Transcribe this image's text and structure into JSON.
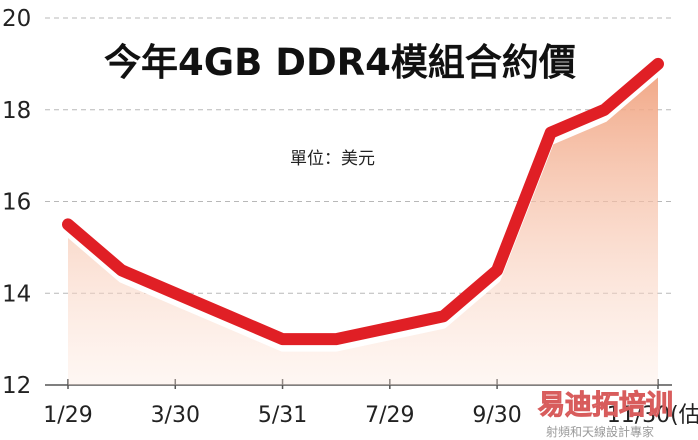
{
  "chart_data": {
    "type": "line",
    "title": "今年4GB DDR4模組合約價",
    "unit_label": "單位：美元",
    "x": [
      "1/29",
      "2/28",
      "3/30",
      "4/30",
      "5/31",
      "6/30",
      "7/29",
      "8/31",
      "9/30",
      "10/16",
      "10/31",
      "11/30"
    ],
    "tick_labels": [
      "1/29",
      "3/30",
      "5/31",
      "7/29",
      "9/30",
      "11/30(估)"
    ],
    "series": [
      {
        "values": [
          15.5,
          14.5,
          14.0,
          13.5,
          13.0,
          13.0,
          13.25,
          13.5,
          14.5,
          17.5,
          18.0,
          19.0
        ]
      }
    ],
    "ylim": [
      12,
      20
    ],
    "yticks": [
      12,
      14,
      16,
      18,
      20
    ],
    "grid": "horizontal-dashed",
    "line_color": "#e01f25",
    "area_color": "#f0a07c"
  },
  "watermark": {
    "main": "易迪拓培训",
    "sub": "射頻和天線設計專家"
  }
}
